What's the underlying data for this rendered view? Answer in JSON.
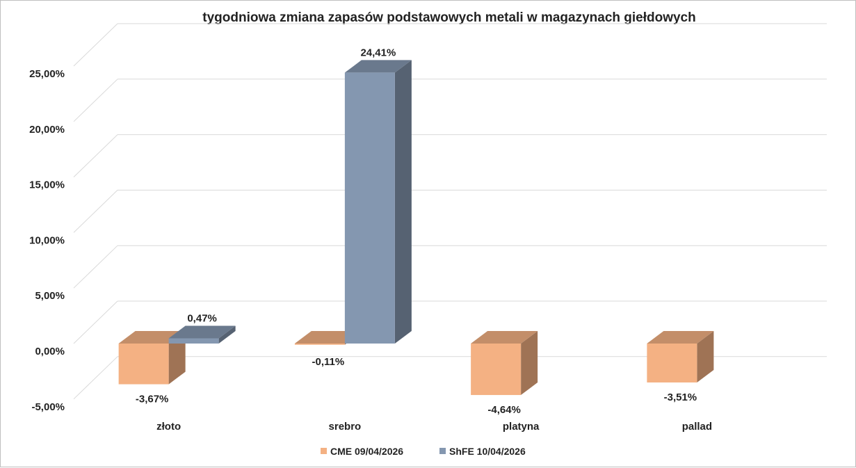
{
  "chart_data": {
    "type": "bar",
    "title": "tygodniowa zmiana zapasów podstawowych metali w magazynach giełdowych",
    "categories": [
      "złoto",
      "srebro",
      "platyna",
      "pallad"
    ],
    "series": [
      {
        "name": "CME 09/04/2026",
        "values": [
          -3.67,
          -0.11,
          -4.64,
          -3.51
        ],
        "labels": [
          "-3,67%",
          "-0,11%",
          "-4,64%",
          "-3,51%"
        ],
        "color": "#F4B183"
      },
      {
        "name": "ShFE 10/04/2026",
        "values": [
          0.47,
          24.41,
          null,
          null
        ],
        "labels": [
          "0,47%",
          "24,41%",
          "",
          ""
        ],
        "color": "#8497B0"
      }
    ],
    "ylim": [
      -5,
      25
    ],
    "yticks": [
      -5,
      0,
      5,
      10,
      15,
      20,
      25
    ],
    "ytick_labels": [
      "-5,00%",
      "0,00%",
      "5,00%",
      "10,00%",
      "15,00%",
      "20,00%",
      "25,00%"
    ],
    "grid": true,
    "legend_position": "bottom",
    "three_d": true
  }
}
